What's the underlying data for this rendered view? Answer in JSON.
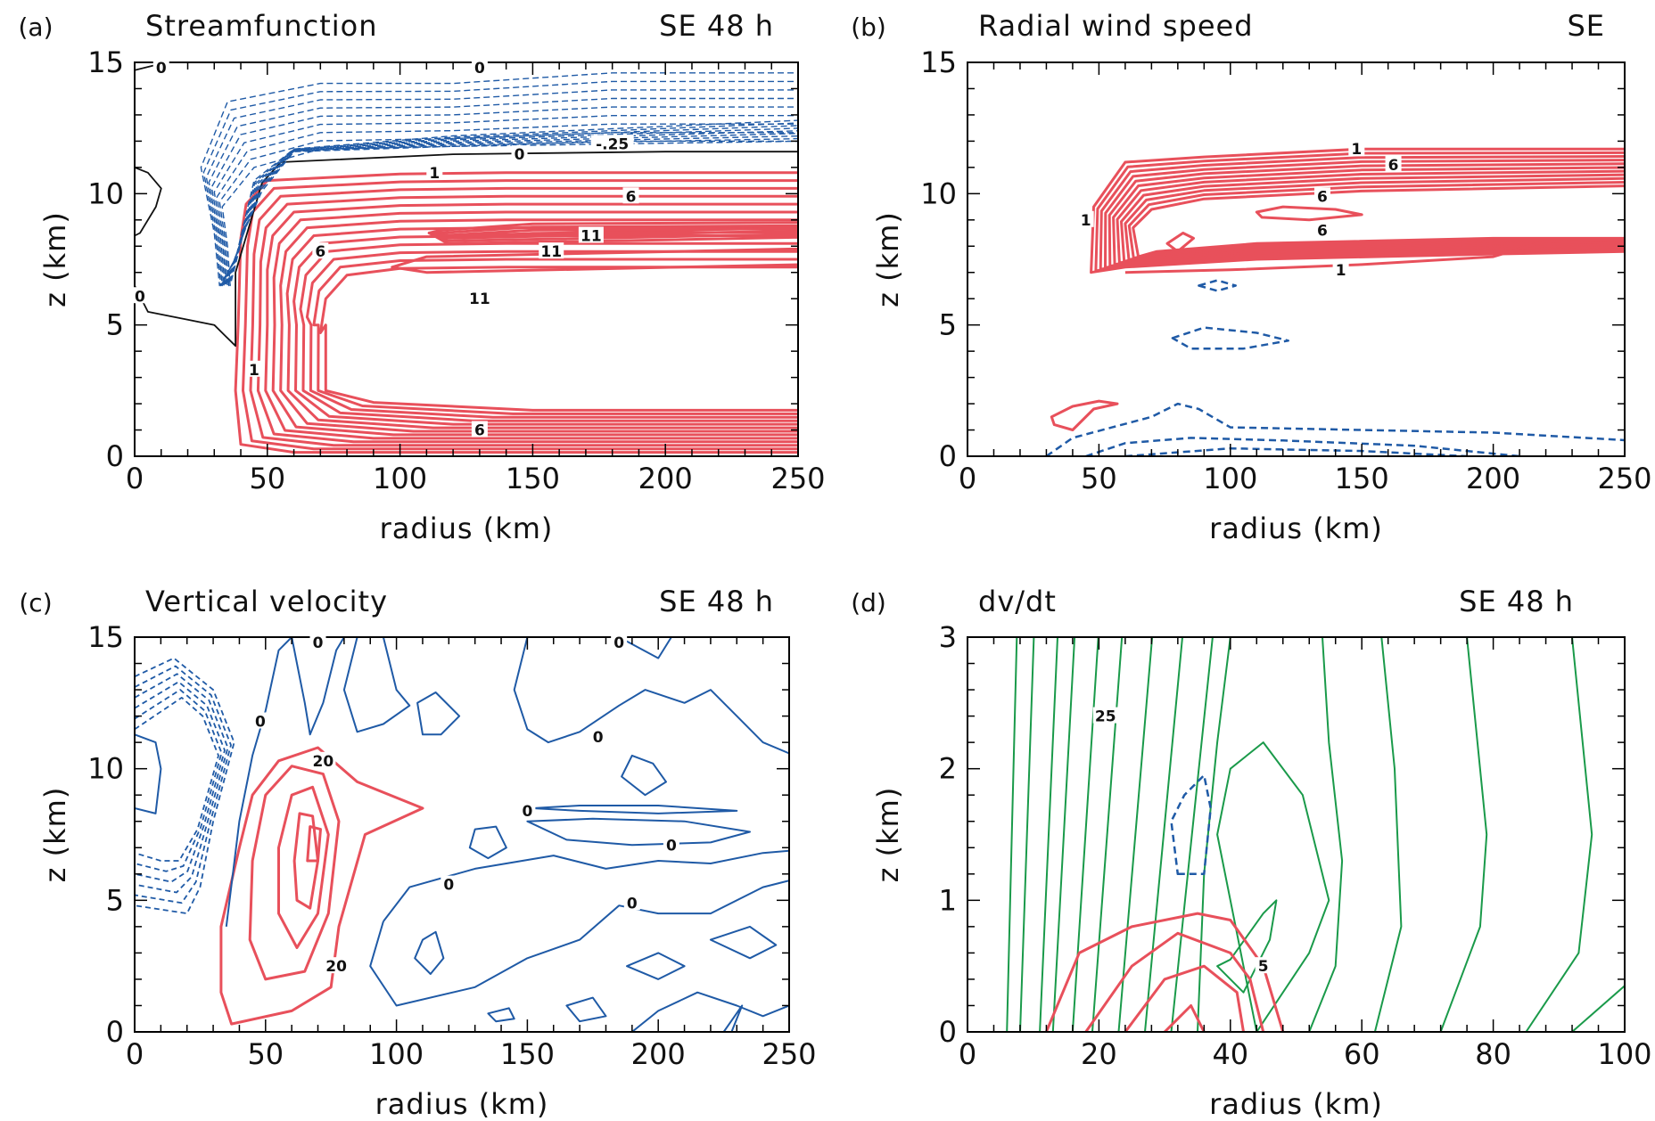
{
  "colors": {
    "positive": "#e8505b",
    "negative": "#1f5aa6",
    "zero": "#111111",
    "green": "#1a9a4a"
  },
  "chart_data": [
    {
      "panel": "(a)",
      "type": "contour",
      "title": "Streamfunction",
      "time_label": "SE 48 h",
      "xlabel": "radius (km)",
      "ylabel": "z (km)",
      "xlim": [
        0,
        250
      ],
      "ylim": [
        0,
        15
      ],
      "xticks": [
        "0",
        "50",
        "100",
        "150",
        "200",
        "250"
      ],
      "yticks": [
        "0",
        "5",
        "10",
        "15"
      ],
      "contour_labels": [
        {
          "text": "0",
          "x": 10,
          "y": 14.8
        },
        {
          "text": "0",
          "x": 130,
          "y": 14.8
        },
        {
          "text": "-.25",
          "x": 180,
          "y": 11.9
        },
        {
          "text": "0",
          "x": 145,
          "y": 11.5
        },
        {
          "text": "1",
          "x": 113,
          "y": 10.8
        },
        {
          "text": "6",
          "x": 187,
          "y": 9.9
        },
        {
          "text": "11",
          "x": 172,
          "y": 8.4
        },
        {
          "text": "11",
          "x": 157,
          "y": 7.8
        },
        {
          "text": "6",
          "x": 70,
          "y": 7.8
        },
        {
          "text": "0",
          "x": 2,
          "y": 6.1
        },
        {
          "text": "11",
          "x": 130,
          "y": 6.0
        },
        {
          "text": "1",
          "x": 45,
          "y": 3.3
        },
        {
          "text": "6",
          "x": 130,
          "y": 1.0
        }
      ]
    },
    {
      "panel": "(b)",
      "type": "contour",
      "title": "Radial wind speed",
      "time_label": "SE",
      "xlabel": "radius (km)",
      "ylabel": "z (km)",
      "xlim": [
        0,
        250
      ],
      "ylim": [
        0,
        15
      ],
      "xticks": [
        "0",
        "50",
        "100",
        "150",
        "200",
        "250"
      ],
      "yticks": [
        "0",
        "5",
        "10",
        "15"
      ],
      "contour_labels": [
        {
          "text": "1",
          "x": 148,
          "y": 11.7
        },
        {
          "text": "6",
          "x": 162,
          "y": 11.1
        },
        {
          "text": "6",
          "x": 135,
          "y": 9.9
        },
        {
          "text": "6",
          "x": 135,
          "y": 8.6
        },
        {
          "text": "1",
          "x": 45,
          "y": 9.0
        },
        {
          "text": "1",
          "x": 142,
          "y": 7.1
        }
      ]
    },
    {
      "panel": "(c)",
      "type": "contour",
      "title": "Vertical velocity",
      "time_label": "SE 48 h",
      "xlabel": "radius (km)",
      "ylabel": "z (km)",
      "xlim": [
        0,
        250
      ],
      "ylim": [
        0,
        15
      ],
      "xticks": [
        "0",
        "50",
        "100",
        "150",
        "200",
        "250"
      ],
      "yticks": [
        "0",
        "5",
        "10",
        "15"
      ],
      "contour_labels": [
        {
          "text": "0",
          "x": 70,
          "y": 14.8
        },
        {
          "text": "0",
          "x": 185,
          "y": 14.8
        },
        {
          "text": "0",
          "x": 48,
          "y": 11.8
        },
        {
          "text": "20",
          "x": 72,
          "y": 10.3
        },
        {
          "text": "0",
          "x": 177,
          "y": 11.2
        },
        {
          "text": "0",
          "x": 150,
          "y": 8.4
        },
        {
          "text": "0",
          "x": 205,
          "y": 7.1
        },
        {
          "text": "0",
          "x": 120,
          "y": 5.6
        },
        {
          "text": "0",
          "x": 190,
          "y": 4.9
        },
        {
          "text": "20",
          "x": 77,
          "y": 2.5
        }
      ]
    },
    {
      "panel": "(d)",
      "type": "contour",
      "title": "dv/dt",
      "time_label": "SE  48 h",
      "xlabel": "radius (km)",
      "ylabel": "z (km)",
      "xlim": [
        0,
        100
      ],
      "ylim": [
        0,
        3
      ],
      "xticks": [
        "0",
        "20",
        "40",
        "60",
        "80",
        "100"
      ],
      "yticks": [
        "0",
        "1",
        "2",
        "3"
      ],
      "contour_labels": [
        {
          "text": "25",
          "x": 21,
          "y": 2.4
        },
        {
          "text": "5",
          "x": 45,
          "y": 0.5
        }
      ]
    }
  ]
}
